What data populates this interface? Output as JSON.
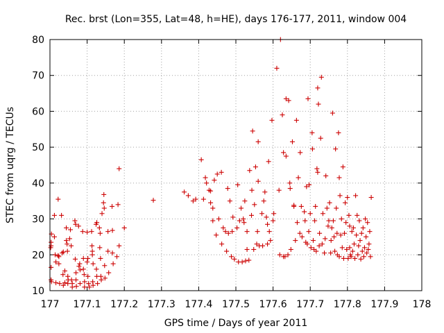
{
  "chart_data": {
    "type": "scatter",
    "title": "Rec. brst (Lon=355, Lat=48, h=HE), days 176-177, 2011, window 004",
    "xlabel": "GPS time / Days of year 2011",
    "ylabel": "STEC from uqrg / TECUs",
    "xlim": [
      177,
      178
    ],
    "ylim": [
      10,
      80
    ],
    "xticks": [
      "177",
      "177.1",
      "177.2",
      "177.3",
      "177.4",
      "177.5",
      "177.6",
      "177.7",
      "177.8",
      "177.9",
      "178"
    ],
    "yticks": [
      "10",
      "20",
      "30",
      "40",
      "50",
      "60",
      "70",
      "80"
    ],
    "grid": true,
    "marker": "+",
    "color": "#cc0000",
    "points": [
      [
        177.002,
        22.0
      ],
      [
        177.003,
        22.5
      ],
      [
        177.003,
        23.5
      ],
      [
        177.004,
        25.8
      ],
      [
        177.003,
        16.5
      ],
      [
        177.003,
        13.0
      ],
      [
        177.004,
        12.5
      ],
      [
        177.012,
        31.0
      ],
      [
        177.012,
        25.0
      ],
      [
        177.014,
        20.0
      ],
      [
        177.016,
        18.0
      ],
      [
        177.016,
        12.2
      ],
      [
        177.022,
        35.5
      ],
      [
        177.024,
        19.5
      ],
      [
        177.024,
        17.5
      ],
      [
        177.026,
        12.0
      ],
      [
        177.022,
        19.8
      ],
      [
        177.031,
        31.0
      ],
      [
        177.033,
        20.5
      ],
      [
        177.035,
        14.5
      ],
      [
        177.036,
        20.8
      ],
      [
        177.036,
        11.5
      ],
      [
        177.04,
        15.5
      ],
      [
        177.04,
        12.2
      ],
      [
        177.044,
        27.5
      ],
      [
        177.044,
        24.0
      ],
      [
        177.046,
        23.0
      ],
      [
        177.047,
        21.0
      ],
      [
        177.048,
        14.0
      ],
      [
        177.048,
        12.0
      ],
      [
        177.049,
        13.0
      ],
      [
        177.053,
        24.5
      ],
      [
        177.055,
        27.0
      ],
      [
        177.057,
        22.5
      ],
      [
        177.058,
        13.0
      ],
      [
        177.06,
        12.0
      ],
      [
        177.06,
        11.0
      ],
      [
        177.067,
        29.5
      ],
      [
        177.069,
        28.5
      ],
      [
        177.068,
        18.8
      ],
      [
        177.07,
        15.0
      ],
      [
        177.07,
        13.0
      ],
      [
        177.071,
        11.2
      ],
      [
        177.077,
        28.0
      ],
      [
        177.078,
        16.8
      ],
      [
        177.08,
        17.5
      ],
      [
        177.081,
        15.8
      ],
      [
        177.081,
        12.0
      ],
      [
        177.088,
        26.5
      ],
      [
        177.09,
        19.0
      ],
      [
        177.09,
        16.0
      ],
      [
        177.092,
        14.5
      ],
      [
        177.093,
        12.5
      ],
      [
        177.093,
        11.0
      ],
      [
        177.1,
        26.3
      ],
      [
        177.1,
        18.0
      ],
      [
        177.102,
        19.0
      ],
      [
        177.102,
        14.0
      ],
      [
        177.104,
        12.0
      ],
      [
        177.106,
        11.0
      ],
      [
        177.112,
        26.5
      ],
      [
        177.113,
        22.5
      ],
      [
        177.114,
        21.0
      ],
      [
        177.114,
        20.0
      ],
      [
        177.116,
        17.5
      ],
      [
        177.115,
        12.5
      ],
      [
        177.116,
        11.5
      ],
      [
        177.124,
        28.5
      ],
      [
        177.126,
        29.0
      ],
      [
        177.125,
        16.0
      ],
      [
        177.126,
        14.0
      ],
      [
        177.128,
        12.0
      ],
      [
        177.133,
        27.5
      ],
      [
        177.135,
        26.0
      ],
      [
        177.134,
        22.0
      ],
      [
        177.136,
        19.0
      ],
      [
        177.137,
        14.0
      ],
      [
        177.138,
        13.0
      ],
      [
        177.14,
        31.5
      ],
      [
        177.144,
        34.5
      ],
      [
        177.145,
        36.8
      ],
      [
        177.146,
        33.0
      ],
      [
        177.147,
        17.0
      ],
      [
        177.148,
        13.5
      ],
      [
        177.156,
        26.5
      ],
      [
        177.156,
        21.0
      ],
      [
        177.158,
        15.0
      ],
      [
        177.167,
        33.5
      ],
      [
        177.168,
        26.8
      ],
      [
        177.168,
        20.5
      ],
      [
        177.17,
        17.5
      ],
      [
        177.183,
        34.0
      ],
      [
        177.18,
        19.5
      ],
      [
        177.186,
        44.0
      ],
      [
        177.186,
        22.5
      ],
      [
        177.2,
        27.5
      ],
      [
        177.278,
        35.2
      ],
      [
        177.361,
        37.5
      ],
      [
        177.372,
        36.5
      ],
      [
        177.385,
        35.0
      ],
      [
        177.392,
        35.5
      ],
      [
        177.407,
        46.5
      ],
      [
        177.413,
        35.5
      ],
      [
        177.418,
        41.5
      ],
      [
        177.421,
        40.0
      ],
      [
        177.428,
        38.0
      ],
      [
        177.432,
        37.8
      ],
      [
        177.432,
        34.5
      ],
      [
        177.438,
        33.0
      ],
      [
        177.438,
        29.5
      ],
      [
        177.442,
        40.8
      ],
      [
        177.447,
        25.5
      ],
      [
        177.45,
        42.5
      ],
      [
        177.454,
        30.0
      ],
      [
        177.461,
        43.0
      ],
      [
        177.462,
        23.0
      ],
      [
        177.466,
        27.5
      ],
      [
        177.472,
        26.5
      ],
      [
        177.475,
        21.0
      ],
      [
        177.478,
        38.5
      ],
      [
        177.48,
        26.0
      ],
      [
        177.484,
        35.0
      ],
      [
        177.488,
        19.5
      ],
      [
        177.49,
        26.5
      ],
      [
        177.492,
        30.5
      ],
      [
        177.496,
        18.8
      ],
      [
        177.503,
        27.5
      ],
      [
        177.505,
        39.5
      ],
      [
        177.507,
        18.0
      ],
      [
        177.51,
        29.5
      ],
      [
        177.514,
        33.0
      ],
      [
        177.517,
        18.0
      ],
      [
        177.52,
        30.0
      ],
      [
        177.522,
        29.0
      ],
      [
        177.524,
        35.0
      ],
      [
        177.526,
        18.3
      ],
      [
        177.53,
        26.5
      ],
      [
        177.53,
        21.5
      ],
      [
        177.535,
        18.5
      ],
      [
        177.537,
        43.5
      ],
      [
        177.542,
        31.0
      ],
      [
        177.543,
        38.0
      ],
      [
        177.545,
        54.5
      ],
      [
        177.548,
        21.5
      ],
      [
        177.55,
        34.0
      ],
      [
        177.553,
        44.5
      ],
      [
        177.556,
        23.0
      ],
      [
        177.558,
        26.5
      ],
      [
        177.56,
        51.5
      ],
      [
        177.56,
        40.5
      ],
      [
        177.563,
        22.5
      ],
      [
        177.57,
        31.5
      ],
      [
        177.572,
        22.5
      ],
      [
        177.575,
        35.0
      ],
      [
        177.578,
        37.5
      ],
      [
        177.582,
        30.5
      ],
      [
        177.585,
        23.0
      ],
      [
        177.585,
        28.5
      ],
      [
        177.588,
        46.0
      ],
      [
        177.59,
        26.5
      ],
      [
        177.593,
        24.0
      ],
      [
        177.597,
        57.5
      ],
      [
        177.6,
        29.5
      ],
      [
        177.602,
        31.5
      ],
      [
        177.61,
        72.0
      ],
      [
        177.616,
        38.0
      ],
      [
        177.618,
        20.0
      ],
      [
        177.62,
        80.0
      ],
      [
        177.625,
        59.0
      ],
      [
        177.628,
        48.5
      ],
      [
        177.628,
        19.5
      ],
      [
        177.632,
        19.5
      ],
      [
        177.635,
        63.5
      ],
      [
        177.635,
        47.5
      ],
      [
        177.64,
        20.0
      ],
      [
        177.642,
        63.0
      ],
      [
        177.645,
        40.0
      ],
      [
        177.646,
        38.5
      ],
      [
        177.648,
        21.5
      ],
      [
        177.652,
        51.5
      ],
      [
        177.656,
        33.5
      ],
      [
        177.656,
        33.8
      ],
      [
        177.66,
        24.0
      ],
      [
        177.663,
        57.5
      ],
      [
        177.665,
        29.0
      ],
      [
        177.668,
        41.5
      ],
      [
        177.672,
        26.0
      ],
      [
        177.673,
        48.5
      ],
      [
        177.676,
        33.5
      ],
      [
        177.678,
        25.0
      ],
      [
        177.684,
        32.0
      ],
      [
        177.686,
        29.5
      ],
      [
        177.688,
        23.5
      ],
      [
        177.69,
        39.0
      ],
      [
        177.692,
        23.0
      ],
      [
        177.694,
        63.5
      ],
      [
        177.696,
        26.5
      ],
      [
        177.697,
        39.5
      ],
      [
        177.7,
        31.5
      ],
      [
        177.702,
        22.0
      ],
      [
        177.705,
        54.0
      ],
      [
        177.706,
        49.5
      ],
      [
        177.708,
        24.0
      ],
      [
        177.71,
        21.5
      ],
      [
        177.712,
        29.5
      ],
      [
        177.714,
        33.5
      ],
      [
        177.716,
        21.0
      ],
      [
        177.718,
        44.0
      ],
      [
        177.72,
        43.0
      ],
      [
        177.72,
        66.5
      ],
      [
        177.722,
        62.0
      ],
      [
        177.724,
        22.5
      ],
      [
        177.725,
        26.0
      ],
      [
        177.728,
        52.5
      ],
      [
        177.73,
        69.5
      ],
      [
        177.732,
        23.0
      ],
      [
        177.734,
        31.5
      ],
      [
        177.738,
        20.5
      ],
      [
        177.74,
        24.5
      ],
      [
        177.742,
        42.0
      ],
      [
        177.745,
        33.0
      ],
      [
        177.748,
        28.0
      ],
      [
        177.75,
        29.5
      ],
      [
        177.752,
        34.5
      ],
      [
        177.755,
        20.5
      ],
      [
        177.756,
        24.0
      ],
      [
        177.758,
        27.5
      ],
      [
        177.76,
        59.5
      ],
      [
        177.762,
        29.5
      ],
      [
        177.764,
        25.0
      ],
      [
        177.766,
        21.0
      ],
      [
        177.768,
        49.5
      ],
      [
        177.77,
        33.0
      ],
      [
        177.772,
        26.0
      ],
      [
        177.773,
        20.0
      ],
      [
        177.776,
        54.0
      ],
      [
        177.778,
        41.5
      ],
      [
        177.778,
        19.5
      ],
      [
        177.78,
        36.5
      ],
      [
        177.782,
        25.5
      ],
      [
        177.784,
        30.0
      ],
      [
        177.786,
        22.0
      ],
      [
        177.788,
        44.5
      ],
      [
        177.79,
        19.0
      ],
      [
        177.792,
        26.0
      ],
      [
        177.794,
        34.5
      ],
      [
        177.796,
        29.0
      ],
      [
        177.798,
        21.5
      ],
      [
        177.8,
        36.0
      ],
      [
        177.802,
        19.0
      ],
      [
        177.804,
        31.0
      ],
      [
        177.806,
        28.0
      ],
      [
        177.806,
        22.0
      ],
      [
        177.808,
        20.0
      ],
      [
        177.81,
        19.5
      ],
      [
        177.812,
        26.5
      ],
      [
        177.814,
        21.0
      ],
      [
        177.816,
        27.5
      ],
      [
        177.818,
        23.0
      ],
      [
        177.82,
        19.0
      ],
      [
        177.822,
        36.5
      ],
      [
        177.824,
        25.5
      ],
      [
        177.826,
        31.0
      ],
      [
        177.828,
        20.0
      ],
      [
        177.83,
        22.5
      ],
      [
        177.832,
        29.5
      ],
      [
        177.834,
        24.0
      ],
      [
        177.836,
        18.8
      ],
      [
        177.838,
        26.0
      ],
      [
        177.84,
        21.0
      ],
      [
        177.842,
        27.5
      ],
      [
        177.844,
        19.5
      ],
      [
        177.846,
        22.0
      ],
      [
        177.848,
        30.0
      ],
      [
        177.85,
        25.0
      ],
      [
        177.852,
        20.5
      ],
      [
        177.854,
        29.0
      ],
      [
        177.856,
        21.5
      ],
      [
        177.858,
        23.0
      ],
      [
        177.86,
        26.5
      ],
      [
        177.862,
        19.5
      ],
      [
        177.864,
        36.0
      ]
    ]
  }
}
